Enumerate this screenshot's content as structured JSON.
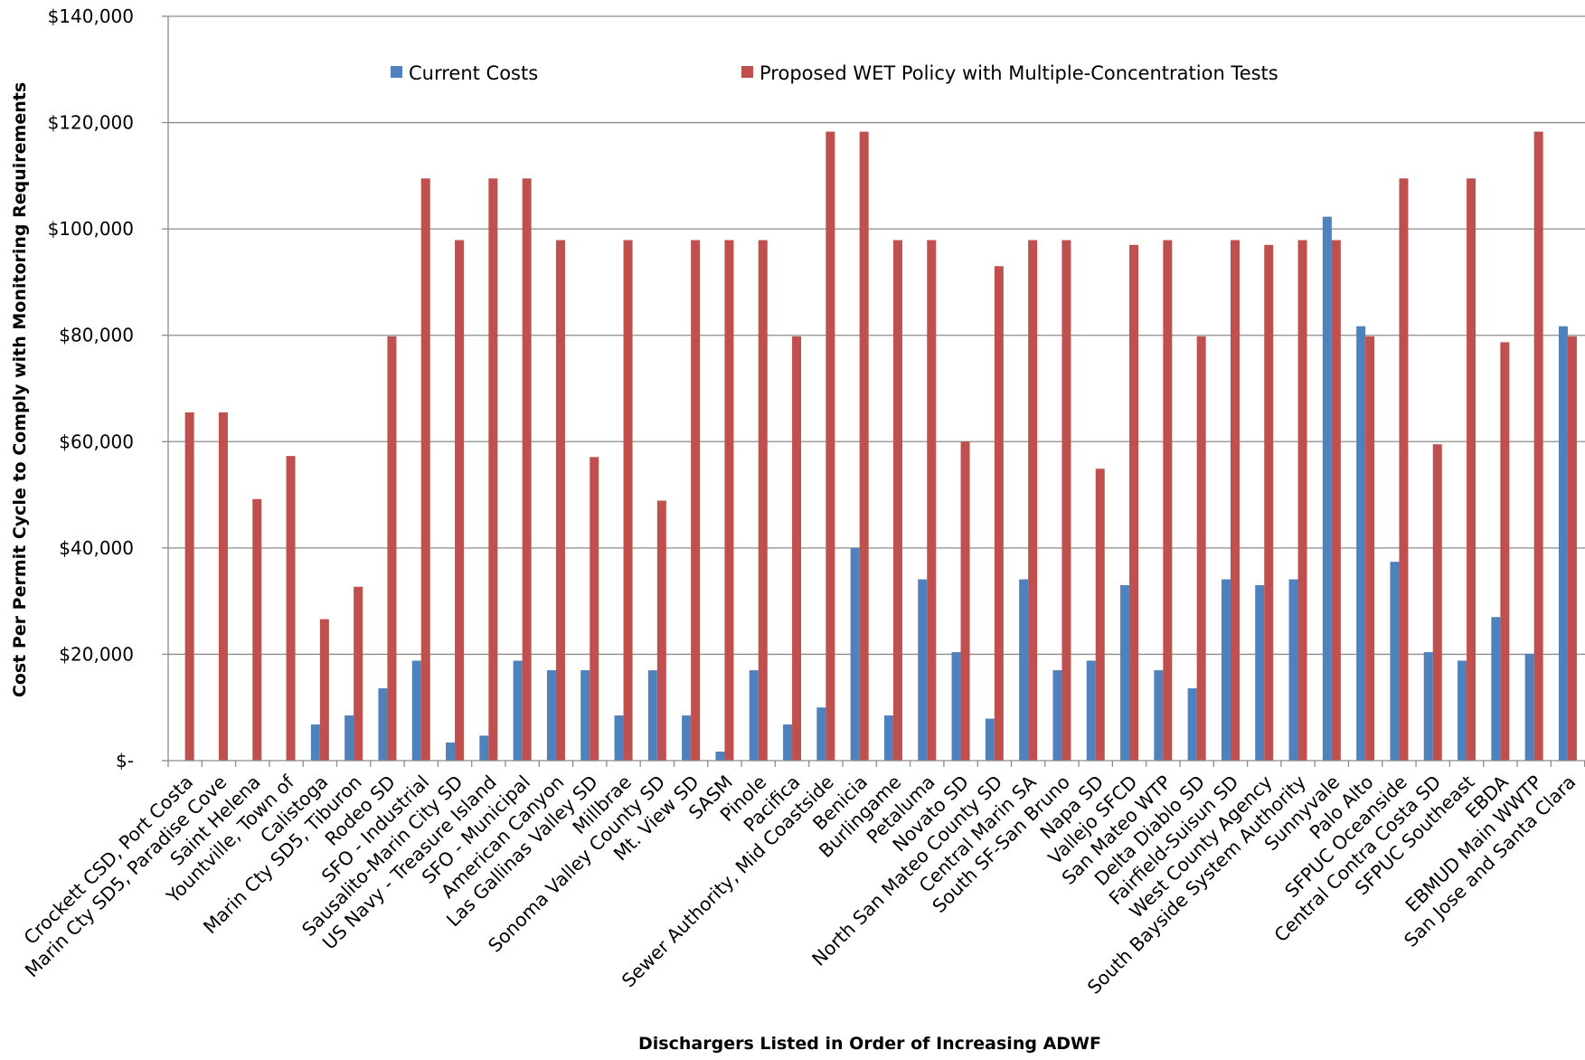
{
  "chart_data": {
    "type": "bar",
    "title": "",
    "xlabel": "Dischargers Listed in Order of Increasing ADWF",
    "ylabel": "Cost Per Permit Cycle to Comply with Monitoring Requirements",
    "ylim": [
      0,
      140000
    ],
    "yticks": [
      {
        "value": 0,
        "label": "$-"
      },
      {
        "value": 20000,
        "label": "$20,000"
      },
      {
        "value": 40000,
        "label": "$40,000"
      },
      {
        "value": 60000,
        "label": "$60,000"
      },
      {
        "value": 80000,
        "label": "$80,000"
      },
      {
        "value": 100000,
        "label": "$100,000"
      },
      {
        "value": 120000,
        "label": "$120,000"
      },
      {
        "value": 140000,
        "label": "$140,000"
      }
    ],
    "grid": true,
    "legend_position": "top",
    "categories": [
      "Crockett CSD, Port Costa",
      "Marin Cty SD5, Paradise Cove",
      "Saint Helena",
      "Yountville, Town of",
      "Calistoga",
      "Marin Cty SD5, Tiburon",
      "Rodeo SD",
      "SFO - Industrial",
      "Sausalito-Marin City SD",
      "US Navy - Treasure Island",
      "SFO - Municipal",
      "American Canyon",
      "Las Gallinas Valley SD",
      "Millbrae",
      "Sonoma Valley County SD",
      "Mt. View SD",
      "SASM",
      "Pinole",
      "Pacifica",
      "Sewer Authority, Mid Coastside",
      "Benicia",
      "Burlingame",
      "Petaluma",
      "Novato SD",
      "North San Mateo County SD",
      "Central Marin SA",
      "South SF-San Bruno",
      "Napa SD",
      "Vallejo SFCD",
      "San Mateo WTP",
      "Delta Diablo SD",
      "Fairfield-Suisun SD",
      "West County Agency",
      "South Bayside System Authority",
      "Sunnyvale",
      "Palo Alto",
      "SFPUC Oceanside",
      "Central Contra Costa SD",
      "SFPUC Southeast",
      "EBDA",
      "EBMUD Main WWTP",
      "San Jose and Santa Clara"
    ],
    "series": [
      {
        "name": "Current Costs",
        "color": "#4F81BD",
        "values": [
          0,
          0,
          0,
          0,
          6800,
          8500,
          13600,
          18800,
          3400,
          4700,
          18800,
          17000,
          17000,
          8500,
          17000,
          8500,
          1700,
          17000,
          6800,
          10000,
          40000,
          8500,
          34100,
          20400,
          7900,
          34100,
          17000,
          18800,
          33000,
          17000,
          13600,
          34100,
          33000,
          34100,
          102300,
          81700,
          37400,
          20400,
          18800,
          27000,
          20100,
          81700
        ]
      },
      {
        "name": "Proposed WET Policy with Multiple-Concentration Tests",
        "color": "#C0504D",
        "values": [
          65500,
          65500,
          49200,
          57300,
          26600,
          32700,
          79800,
          109500,
          97900,
          109500,
          109500,
          97900,
          57100,
          97900,
          48900,
          97900,
          97900,
          97900,
          79800,
          118300,
          118300,
          97900,
          97900,
          60000,
          93000,
          97900,
          97900,
          54900,
          97000,
          97900,
          79800,
          97900,
          97000,
          97900,
          97900,
          79800,
          109500,
          59500,
          109500,
          78700,
          118300,
          79800
        ]
      }
    ]
  }
}
